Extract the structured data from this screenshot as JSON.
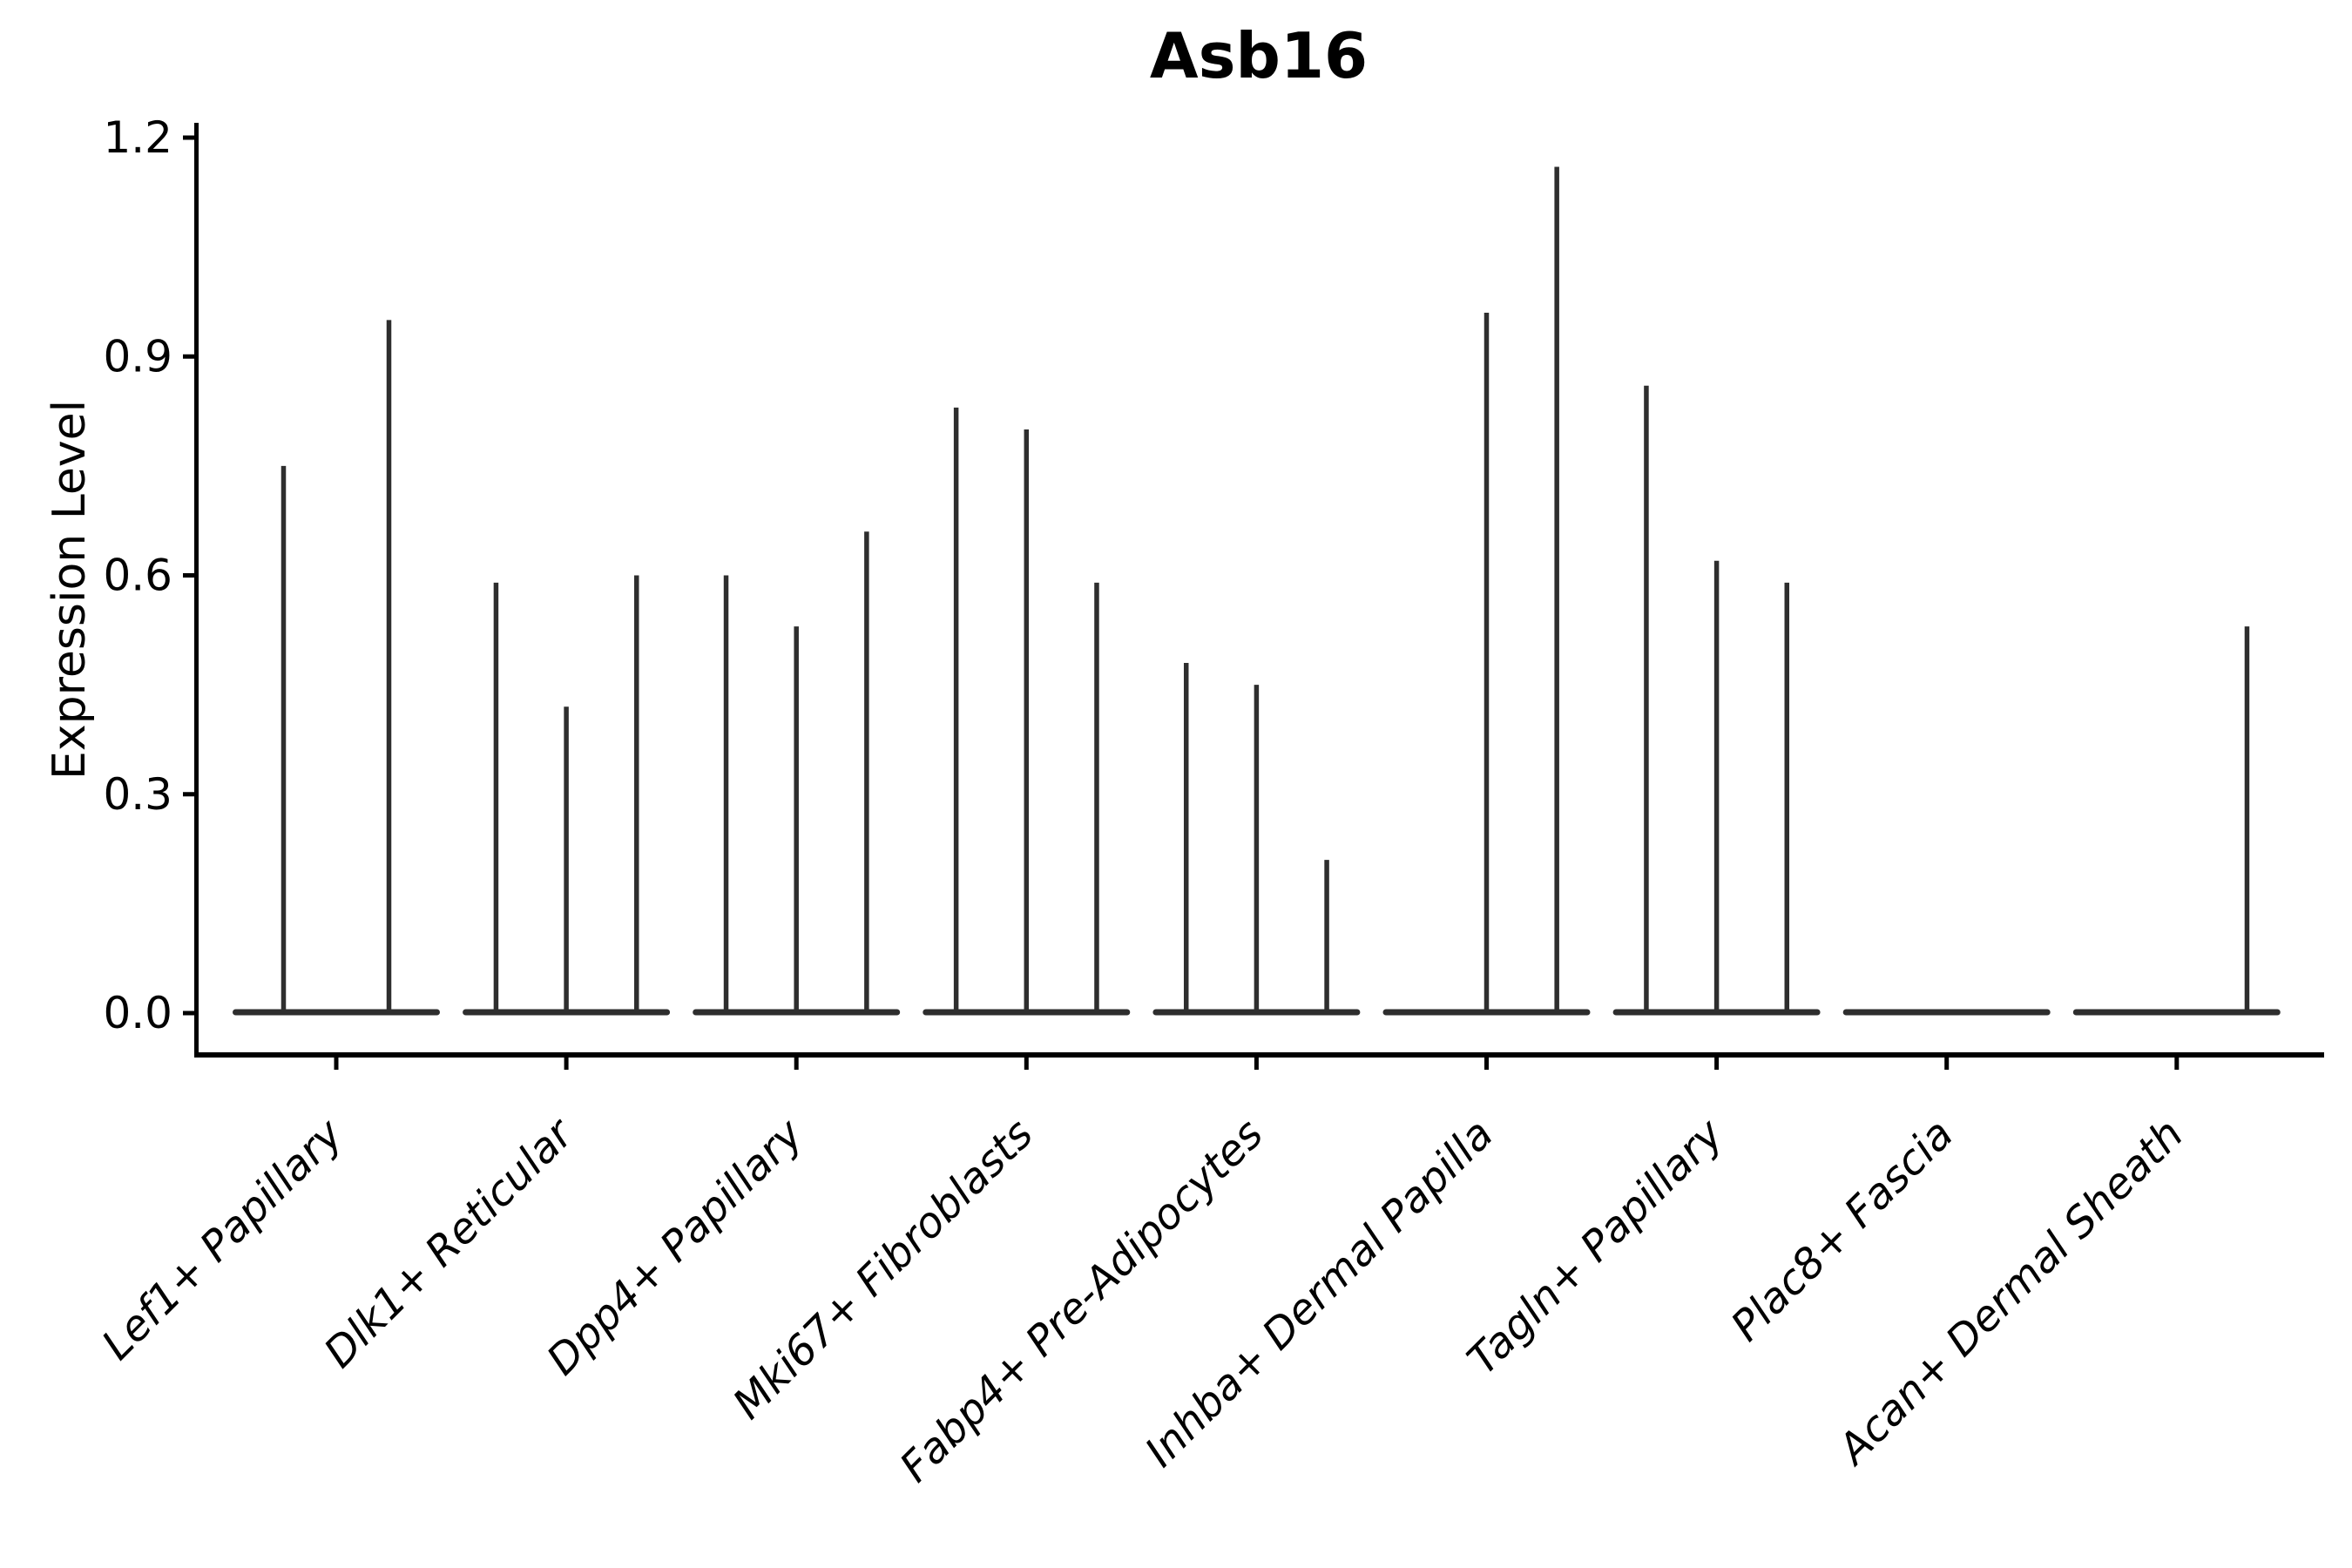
{
  "title": "Asb16",
  "colors": {
    "background": "#ffffff",
    "violin": "#2e2e2e",
    "axis": "#000000",
    "text": "#000000"
  },
  "chart_data": {
    "type": "violin",
    "title": "Asb16",
    "xlabel": "",
    "ylabel": "Expression Level",
    "ylim": [
      0,
      1.2
    ],
    "ytick_labels": [
      "0.0",
      "0.3",
      "0.6",
      "0.9",
      "1.2"
    ],
    "ytick_values": [
      0.0,
      0.3,
      0.6,
      0.9,
      1.2
    ],
    "grid": false,
    "legend_position": "none",
    "description": "Stacked thin violins per cell-type group; each violin collapses to a flat bar at 0 with a vertical spike reaching its maximum expression value. 0 means fully flat violin.",
    "categories": [
      "Lef1+ Papillary",
      "Dlk1+ Reticular",
      "Dpp4+ Papillary",
      "Mki67+ Fibroblasts",
      "Fabp4+ Pre-Adipocytes",
      "Inhba+ Dermal Papilla",
      "Tagln+ Papillary",
      "Plac8+ Fascia",
      "Acan+ Dermal Sheath"
    ],
    "violin_peaks_per_category": [
      [
        0.75,
        0.95
      ],
      [
        0.59,
        0.42,
        0.6
      ],
      [
        0.6,
        0.53,
        0.66
      ],
      [
        0.83,
        0.8,
        0.59
      ],
      [
        0.48,
        0.45,
        0.21
      ],
      [
        0.0,
        0.96,
        1.16
      ],
      [
        0.86,
        0.62,
        0.59
      ],
      [
        0.0,
        0.0,
        0.0
      ],
      [
        0.0,
        0.0,
        0.53
      ]
    ]
  }
}
